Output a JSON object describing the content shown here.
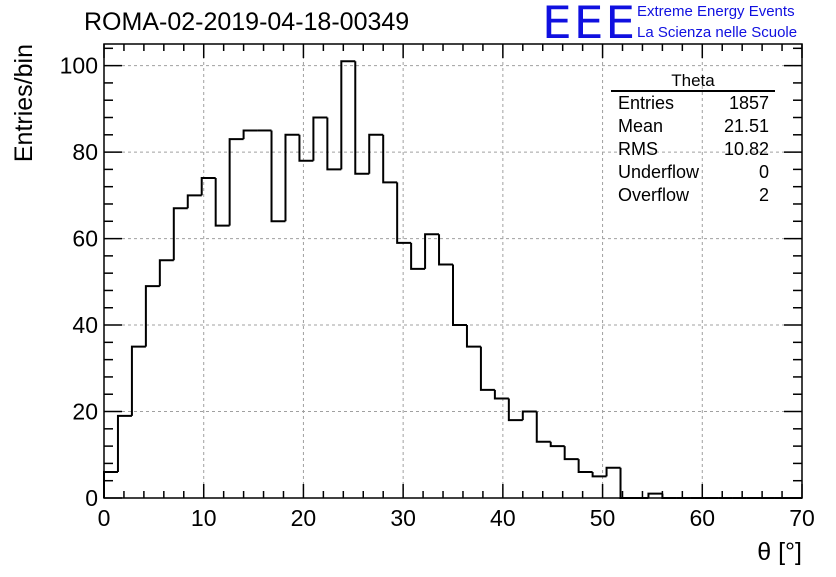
{
  "header": {
    "run_title": "ROMA-02-2019-04-18-00349",
    "logo_text": "EEE",
    "logo_line1": "Extreme Energy Events",
    "logo_line2": "La Scienza nelle Scuole"
  },
  "stats": {
    "title": "Theta",
    "rows": [
      {
        "label": "Entries",
        "value": "1857"
      },
      {
        "label": "Mean",
        "value": "21.51"
      },
      {
        "label": "RMS",
        "value": "10.82"
      },
      {
        "label": "Underflow",
        "value": "0"
      },
      {
        "label": "Overflow",
        "value": "2"
      }
    ]
  },
  "colors": {
    "line": "#000000",
    "grid": "#a0a0a0",
    "logo": "#1010e0"
  },
  "chart_data": {
    "type": "histogram",
    "title": "ROMA-02-2019-04-18-00349",
    "xlabel": "θ [°]",
    "ylabel": "Entries/bin",
    "xlim": [
      0,
      70
    ],
    "ylim": [
      0,
      105
    ],
    "bin_width": 1.4,
    "bin_edges_start": 0,
    "values": [
      6,
      19,
      35,
      49,
      55,
      67,
      70,
      74,
      63,
      83,
      85,
      85,
      64,
      84,
      78,
      88,
      76,
      101,
      75,
      84,
      73,
      59,
      53,
      61,
      54,
      40,
      35,
      25,
      23,
      18,
      20,
      13,
      12,
      9,
      6,
      5,
      7,
      0,
      0,
      1,
      0,
      0,
      0,
      0,
      0,
      0,
      0,
      0,
      0,
      0
    ],
    "xticks": [
      0,
      10,
      20,
      30,
      40,
      50,
      60,
      70
    ],
    "xtick_labels": [
      "0",
      "10",
      "20",
      "30",
      "40",
      "50",
      "60",
      "70"
    ],
    "yticks": [
      0,
      20,
      40,
      60,
      80,
      100
    ],
    "ytick_labels": [
      "0",
      "20",
      "40",
      "60",
      "80",
      "100"
    ],
    "grid": true
  }
}
